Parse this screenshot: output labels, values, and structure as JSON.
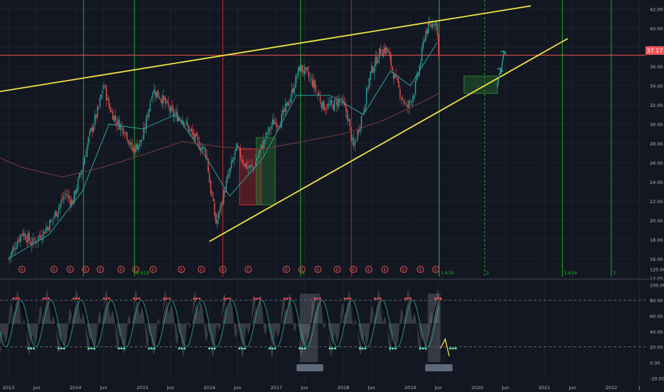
{
  "colors": {
    "background": "#131722",
    "grid": "#1e222d",
    "axis_text": "#b2b5be",
    "trend": "#f0e442",
    "green_v": "#1bb01b",
    "red_v": "#c62828",
    "price_tag": "#ef5350",
    "candle_up": "#26a69a",
    "candle_down": "#ef5350",
    "osc_line": "#d1d4dc",
    "osc_fill": "#787b86"
  },
  "chart_data": [
    {
      "type": "candlestick",
      "title": "",
      "price_label": "37.17",
      "price_ticks": [
        "42.00",
        "40.00",
        "38.00",
        "36.00",
        "34.00",
        "32.00",
        "30.00",
        "28.00",
        "26.00",
        "24.00",
        "22.00",
        "20.00",
        "18.00",
        "16.00",
        "14.00"
      ],
      "ylim": [
        14,
        42
      ],
      "x_tick_labels": [
        "2013",
        "Jun",
        "2014",
        "Jun",
        "2015",
        "Jun",
        "2016",
        "Jun",
        "2017",
        "Jun",
        "2018",
        "Jun",
        "2019",
        "Jun",
        "2020",
        "Jun",
        "2021",
        "Jun",
        "2022",
        "J"
      ],
      "fib_labels": [
        "0.618",
        "1",
        "1.618",
        "2",
        "2.618",
        "3"
      ],
      "earnings_marker": "E",
      "close_path": [
        [
          2013.0,
          16.0
        ],
        [
          2013.2,
          18.8
        ],
        [
          2013.35,
          17.6
        ],
        [
          2013.5,
          18.6
        ],
        [
          2013.65,
          20.0
        ],
        [
          2013.85,
          22.8
        ],
        [
          2013.95,
          21.8
        ],
        [
          2014.1,
          25.5
        ],
        [
          2014.2,
          28.6
        ],
        [
          2014.35,
          31.8
        ],
        [
          2014.42,
          34.2
        ],
        [
          2014.5,
          31.8
        ],
        [
          2014.6,
          30.4
        ],
        [
          2014.75,
          29.2
        ],
        [
          2014.85,
          27.2
        ],
        [
          2015.0,
          28.4
        ],
        [
          2015.15,
          33.6
        ],
        [
          2015.3,
          32.6
        ],
        [
          2015.45,
          31.0
        ],
        [
          2015.6,
          30.6
        ],
        [
          2015.75,
          28.8
        ],
        [
          2015.85,
          27.8
        ],
        [
          2015.95,
          27.2
        ],
        [
          2016.0,
          24.0
        ],
        [
          2016.1,
          19.6
        ],
        [
          2016.25,
          23.8
        ],
        [
          2016.4,
          27.5
        ],
        [
          2016.55,
          25.6
        ],
        [
          2016.65,
          25.4
        ],
        [
          2016.75,
          27.2
        ],
        [
          2016.85,
          28.8
        ],
        [
          2016.95,
          30.2
        ],
        [
          2017.05,
          30.2
        ],
        [
          2017.2,
          32.6
        ],
        [
          2017.35,
          36.0
        ],
        [
          2017.45,
          35.2
        ],
        [
          2017.55,
          34.2
        ],
        [
          2017.7,
          31.8
        ],
        [
          2017.85,
          32.0
        ],
        [
          2017.95,
          32.6
        ],
        [
          2018.05,
          31.2
        ],
        [
          2018.15,
          27.4
        ],
        [
          2018.3,
          31.6
        ],
        [
          2018.4,
          35.2
        ],
        [
          2018.55,
          37.6
        ],
        [
          2018.65,
          37.8
        ],
        [
          2018.75,
          35.2
        ],
        [
          2018.85,
          33.2
        ],
        [
          2018.95,
          31.6
        ],
        [
          2019.05,
          33.2
        ],
        [
          2019.15,
          36.4
        ],
        [
          2019.22,
          39.6
        ],
        [
          2019.3,
          40.2
        ],
        [
          2019.38,
          40.9
        ],
        [
          2019.43,
          37.2
        ]
      ],
      "moving_averages": [
        {
          "color": "#26a69a",
          "points": [
            [
              2013.0,
              16.0
            ],
            [
              2013.6,
              18.5
            ],
            [
              2014.1,
              23.0
            ],
            [
              2014.5,
              30.0
            ],
            [
              2015.0,
              29.5
            ],
            [
              2015.5,
              31.0
            ],
            [
              2016.0,
              26.0
            ],
            [
              2016.3,
              22.5
            ],
            [
              2016.8,
              26.5
            ],
            [
              2017.3,
              33.0
            ],
            [
              2017.8,
              33.0
            ],
            [
              2018.3,
              31.0
            ],
            [
              2018.7,
              35.5
            ],
            [
              2019.0,
              34.0
            ],
            [
              2019.4,
              38.5
            ]
          ]
        },
        {
          "color": "#7a3d3d",
          "points": [
            [
              2012.7,
              27.0
            ],
            [
              2013.2,
              25.5
            ],
            [
              2013.8,
              24.5
            ],
            [
              2014.4,
              25.5
            ],
            [
              2015.0,
              26.8
            ],
            [
              2015.6,
              28.2
            ],
            [
              2016.2,
              27.6
            ],
            [
              2016.8,
              27.4
            ],
            [
              2017.4,
              28.2
            ],
            [
              2018.0,
              29.0
            ],
            [
              2018.6,
              30.4
            ],
            [
              2019.2,
              32.4
            ],
            [
              2019.43,
              33.2
            ]
          ]
        }
      ],
      "trendlines": [
        {
          "from": [
            2012.7,
            33.2
          ],
          "to": [
            2020.8,
            42.3
          ],
          "color": "#f0e442"
        },
        {
          "from": [
            2016.0,
            17.8
          ],
          "to": [
            2021.35,
            38.9
          ],
          "color": "#f0e442"
        }
      ],
      "green_vlines": [
        2014.12,
        2014.88,
        2017.36,
        2019.43,
        2021.27,
        2022.0
      ],
      "green_dashed_vlines": [
        2020.11
      ],
      "red_vlines": [
        2016.2,
        2018.12
      ],
      "price_line": 37.17,
      "projection_boxes": [
        {
          "x": [
            2019.8,
            2020.3
          ],
          "y": [
            33.2,
            35.0
          ],
          "color": "#2e7d32"
        },
        {
          "x": [
            2016.45,
            2016.77
          ],
          "y": [
            21.6,
            27.4
          ],
          "color": "#c62828"
        },
        {
          "x": [
            2016.7,
            2016.98
          ],
          "y": [
            21.6,
            28.6
          ],
          "color": "#2e7d32"
        }
      ]
    },
    {
      "type": "line",
      "title": "",
      "ticks": [
        "120.00",
        "100.00",
        "80.00",
        "60.00",
        "40.00",
        "20.00",
        "0.00",
        "-20.00"
      ],
      "ylim": [
        -26,
        128
      ],
      "levels": [
        80,
        20
      ],
      "oscillator_period_years": 0.45,
      "highlight_zones": [
        {
          "x": [
            2017.35,
            2017.62
          ]
        },
        {
          "x": [
            2019.26,
            2019.45
          ]
        }
      ],
      "signal_boxes": [
        {
          "x": [
            2017.3,
            2017.7
          ]
        },
        {
          "x": [
            2019.22,
            2019.63
          ]
        }
      ]
    }
  ]
}
